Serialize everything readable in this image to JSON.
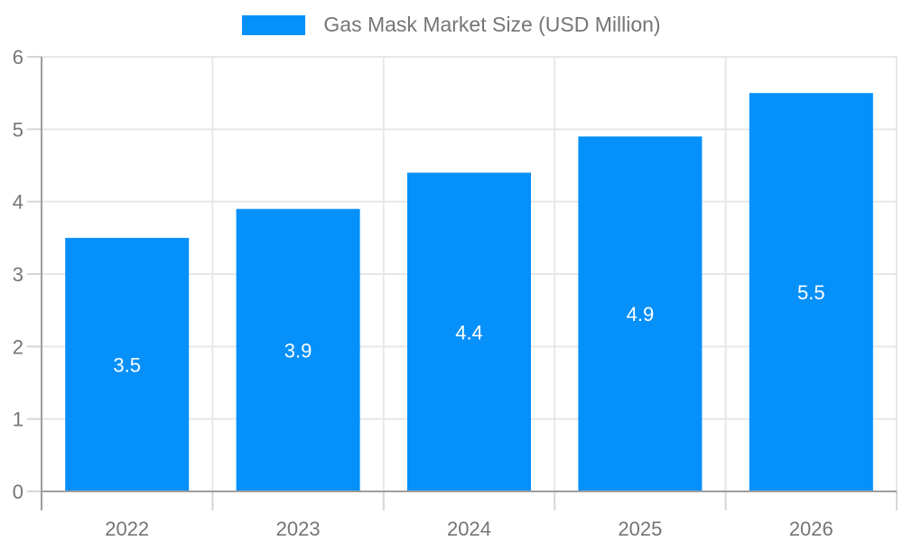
{
  "legend": {
    "label": "Gas Mask Market Size (USD Million)"
  },
  "colors": {
    "bar": "#0590FA",
    "grid": "#e7e7e7",
    "tick": "#d6d6d6",
    "axis_line": "#9e9e9e",
    "axis_label": "#757575",
    "bar_label": "#ffffff",
    "background": "#ffffff"
  },
  "chart_data": {
    "type": "bar",
    "title": "Gas Mask Market Size (USD Million)",
    "categories": [
      "2022",
      "2023",
      "2024",
      "2025",
      "2026"
    ],
    "values": [
      3.5,
      3.9,
      4.4,
      4.9,
      5.5
    ],
    "bar_labels": [
      "3.5",
      "3.9",
      "4.4",
      "4.9",
      "5.5"
    ],
    "series_name": "Gas Mask Market Size (USD Million)",
    "xlabel": "",
    "ylabel": "",
    "ylim": [
      0,
      6
    ],
    "ytick_step": 1,
    "yticks": [
      0,
      1,
      2,
      3,
      4,
      5,
      6
    ],
    "grid": true,
    "legend_position": "top"
  }
}
